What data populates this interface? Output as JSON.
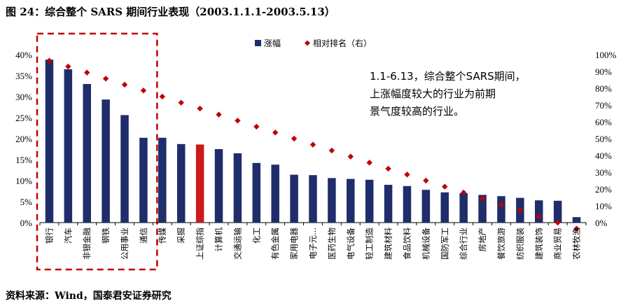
{
  "figure": {
    "title": "图 24：综合整个 SARS 期间行业表现（2003.1.1.1-2003.5.13）",
    "source": "资料来源：Wind，国泰君安证券研究"
  },
  "chart_data": {
    "type": "bar",
    "title": "综合整个 SARS 期间行业表现（2003.1.1.1-2003.5.13）",
    "categories": [
      "银行",
      "汽车",
      "非银金融",
      "钢铁",
      "公用事业",
      "通信",
      "传媒",
      "采掘",
      "上证综指",
      "计算机",
      "交通运输",
      "化工",
      "有色金属",
      "家用电器",
      "电子元...",
      "医药生物",
      "电气设备",
      "轻工制造",
      "建筑材料",
      "食品饮料",
      "机械设备",
      "国防军工",
      "综合行业",
      "房地产",
      "餐饮旅游",
      "纺织服装",
      "建筑装饰",
      "商业贸易",
      "农林牧渔"
    ],
    "series": [
      {
        "name": "涨幅",
        "axis": "left",
        "color": "#1f2d6b",
        "values": [
          38.8,
          36.5,
          33.0,
          29.3,
          25.6,
          20.2,
          20.2,
          18.7,
          18.6,
          17.5,
          16.5,
          14.2,
          13.8,
          11.4,
          11.3,
          10.6,
          10.4,
          10.2,
          9.0,
          8.7,
          7.8,
          7.2,
          7.0,
          6.6,
          6.3,
          5.9,
          5.3,
          5.2,
          1.3
        ]
      },
      {
        "name": "相对排名（右）",
        "axis": "right",
        "color": "#c00000",
        "values": [
          96.4,
          92.9,
          89.3,
          85.7,
          82.1,
          78.6,
          75.0,
          71.4,
          67.9,
          64.3,
          60.7,
          57.1,
          53.6,
          50.0,
          46.4,
          42.9,
          39.3,
          35.7,
          32.1,
          28.6,
          25.0,
          21.4,
          17.9,
          14.3,
          10.7,
          7.1,
          3.6,
          0.0,
          -3.6
        ]
      }
    ],
    "highlight_category": "上证综指",
    "highlight_color": "#cc1a1a",
    "left_axis": {
      "ticks": [
        "0%",
        "5%",
        "10%",
        "15%",
        "20%",
        "25%",
        "30%",
        "35%",
        "40%"
      ],
      "ylim": [
        0,
        40
      ]
    },
    "right_axis": {
      "ticks": [
        "0%",
        "10%",
        "20%",
        "30%",
        "40%",
        "50%",
        "60%",
        "70%",
        "80%",
        "90%",
        "100%"
      ],
      "ylim": [
        0,
        100
      ]
    },
    "legend": {
      "position": "top-right",
      "items": [
        "涨幅",
        "相对排名（右）"
      ]
    },
    "annotation": [
      "1.1-6.13，综合整个SARS期间，",
      "上涨幅度较大的行业为前期",
      "景气度较高的行业。"
    ],
    "highlight_box_label_count": 6
  }
}
